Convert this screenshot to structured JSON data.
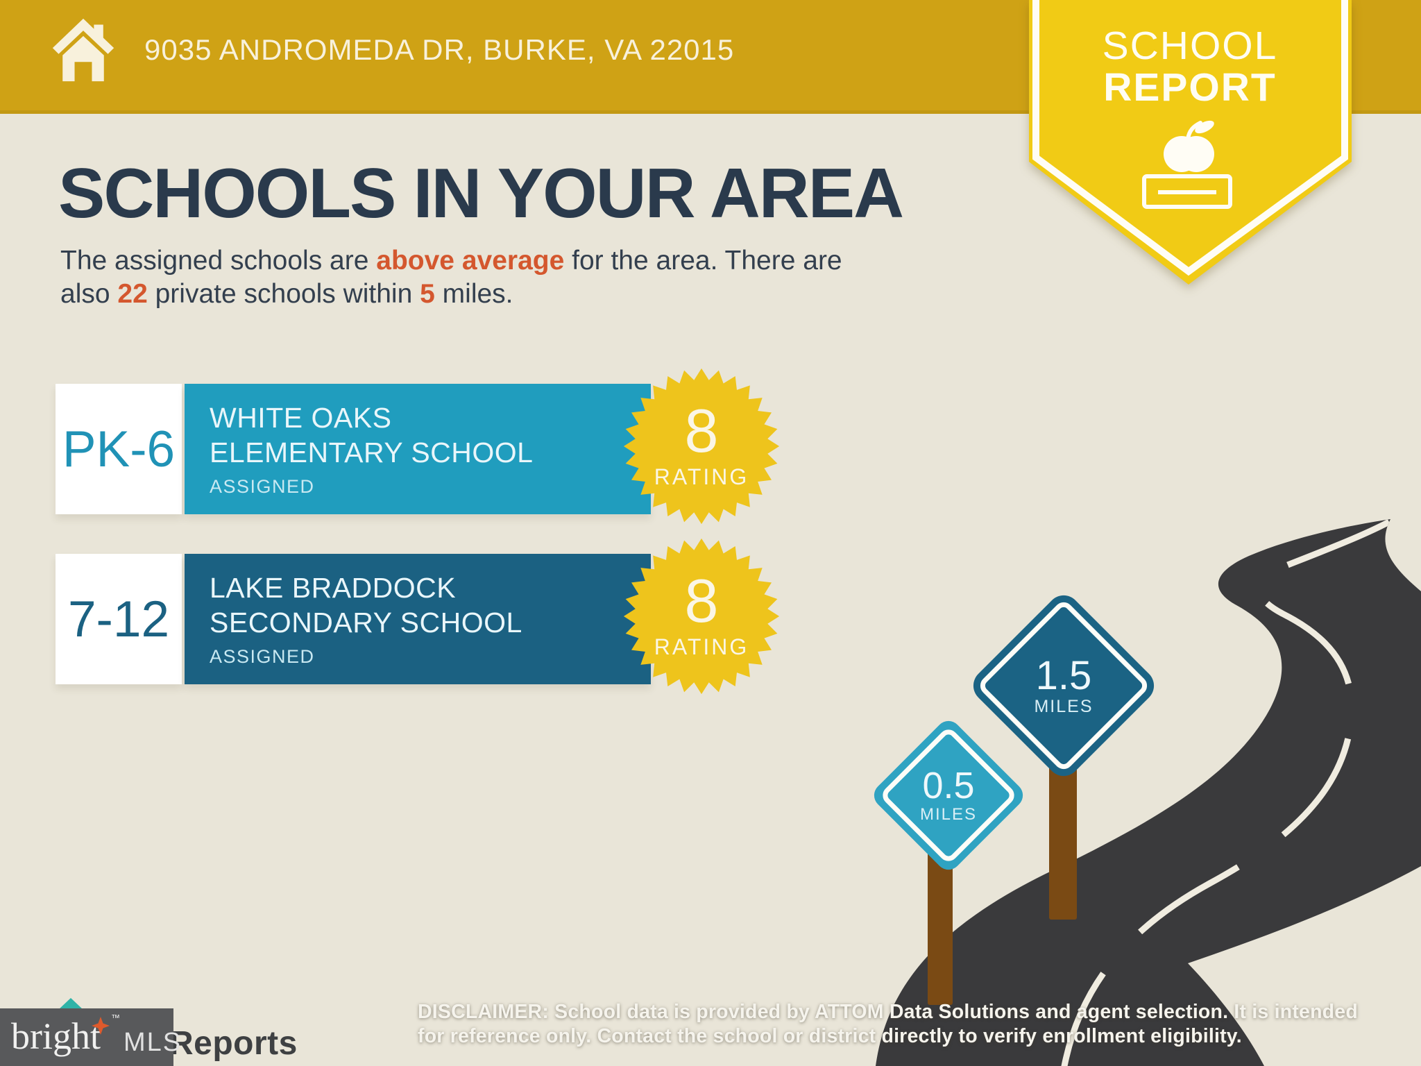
{
  "colors": {
    "topbar_gold": "#CFA215",
    "banner_yellow": "#F1CB15",
    "background_beige": "#E9E5D8",
    "heading_navy": "#2A3A4C",
    "accent_orange": "#D4572E",
    "elementary_teal": "#209DBE",
    "secondary_blue": "#1B6182",
    "starburst_yellow": "#EEC41C",
    "road_dark": "#3A3A3C",
    "post_brown": "#7A4A14"
  },
  "topbar": {
    "address": "9035 ANDROMEDA DR, BURKE, VA 22015"
  },
  "banner": {
    "word1": "SCHOOL",
    "word2": "REPORT"
  },
  "main": {
    "heading": "SCHOOLS IN YOUR AREA",
    "subtitle": {
      "line1_pre": "The assigned schools are ",
      "line1_highlight": "above average",
      "line1_post": " for the area. There are",
      "line2_pre": "also ",
      "line2_num1": "22",
      "line2_mid": " private schools within ",
      "line2_num2": "5",
      "line2_post": " miles."
    }
  },
  "schools": [
    {
      "grades": "PK-6",
      "name_line1": "WHITE OAKS",
      "name_line2": "ELEMENTARY SCHOOL",
      "status": "ASSIGNED",
      "rating": "8",
      "rating_label": "RATING"
    },
    {
      "grades": "7-12",
      "name_line1": "LAKE BRADDOCK",
      "name_line2": "SECONDARY SCHOOL",
      "status": "ASSIGNED",
      "rating": "8",
      "rating_label": "RATING"
    }
  ],
  "signs": [
    {
      "distance": "0.5",
      "unit": "MILES"
    },
    {
      "distance": "1.5",
      "unit": "MILES"
    }
  ],
  "footer": {
    "logo_serif": "bright",
    "logo_tm": "™",
    "logo_mls": "MLS",
    "logo_partial": "Reports",
    "disclaimer_label": "DISCLAIMER:",
    "disclaimer_line1": " School data is provided by ATTOM Data Solutions and agent selection. It is intended",
    "disclaimer_line2": "for reference only. Contact the school or district directly to verify enrollment eligibility."
  }
}
